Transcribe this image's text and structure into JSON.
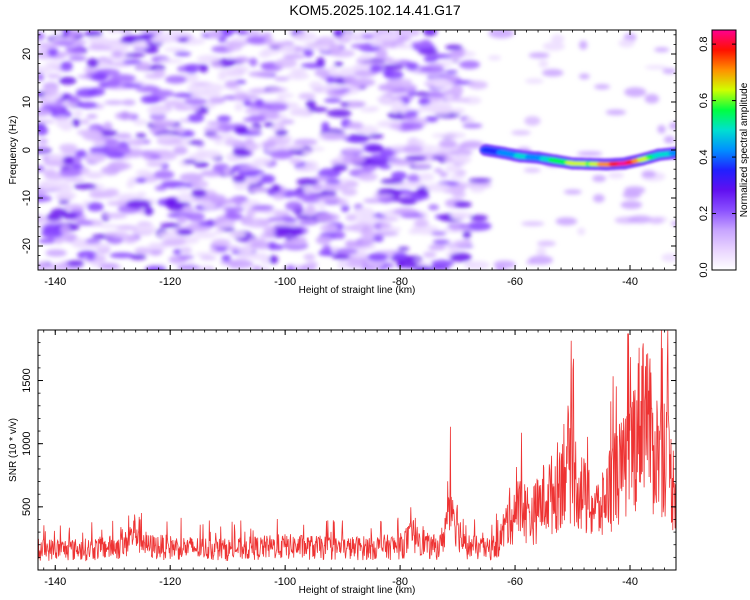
{
  "title": "KOM5.2025.102.14.41.G17",
  "colors": {
    "snr_line": "#ee3333",
    "colormap": [
      "#ffffff",
      "#e9d4ff",
      "#c7a4ff",
      "#8a4fff",
      "#6010f0",
      "#2020ff",
      "#0090ff",
      "#00e0d0",
      "#00ff40",
      "#d0ff00",
      "#ff9000",
      "#ff1000",
      "#ff0090"
    ]
  },
  "chart_data": [
    {
      "type": "heatmap",
      "name": "spectrogram",
      "xlabel": "Height of straight line (km)",
      "ylabel": "Frequency (Hz)",
      "xlim": [
        -143,
        -32
      ],
      "ylim": [
        -25,
        25
      ],
      "xticks": [
        -140,
        -120,
        -100,
        -80,
        -60,
        -40
      ],
      "yticks": [
        -20,
        -10,
        0,
        10,
        20
      ],
      "colorbar": {
        "label": "Normalized spectral amplitude",
        "range": [
          0.0,
          0.85
        ],
        "ticks": [
          "0.0",
          "0.2",
          "0.4",
          "0.6",
          "0.8"
        ]
      },
      "signal_ridge": [
        {
          "x": -65,
          "y": 0.0,
          "amp": 0.32
        },
        {
          "x": -62,
          "y": -0.6,
          "amp": 0.42
        },
        {
          "x": -59,
          "y": -1.3,
          "amp": 0.48
        },
        {
          "x": -56,
          "y": -1.6,
          "amp": 0.44
        },
        {
          "x": -53,
          "y": -2.2,
          "amp": 0.55
        },
        {
          "x": -50,
          "y": -2.8,
          "amp": 0.62
        },
        {
          "x": -47,
          "y": -2.9,
          "amp": 0.6
        },
        {
          "x": -44,
          "y": -3.0,
          "amp": 0.72
        },
        {
          "x": -41,
          "y": -2.8,
          "amp": 0.85
        },
        {
          "x": -38,
          "y": -2.0,
          "amp": 0.66
        },
        {
          "x": -35,
          "y": -1.0,
          "amp": 0.5
        },
        {
          "x": -32,
          "y": -0.6,
          "amp": 0.45
        }
      ]
    },
    {
      "type": "line",
      "name": "snr",
      "xlabel": "Height of straight line (km)",
      "ylabel": "SNR (10 * v/v)",
      "xlim": [
        -143,
        -32
      ],
      "ylim": [
        0,
        1900
      ],
      "xticks": [
        -140,
        -120,
        -100,
        -80,
        -60,
        -40
      ],
      "yticks": [
        500,
        1000,
        1500
      ],
      "envelope": [
        {
          "x": -143,
          "y": 200
        },
        {
          "x": -135,
          "y": 200
        },
        {
          "x": -128,
          "y": 230
        },
        {
          "x": -126,
          "y": 390
        },
        {
          "x": -124,
          "y": 230
        },
        {
          "x": -110,
          "y": 200
        },
        {
          "x": -100,
          "y": 230
        },
        {
          "x": -90,
          "y": 210
        },
        {
          "x": -80,
          "y": 230
        },
        {
          "x": -77,
          "y": 360
        },
        {
          "x": -75,
          "y": 220
        },
        {
          "x": -73,
          "y": 230
        },
        {
          "x": -71,
          "y": 650
        },
        {
          "x": -69,
          "y": 240
        },
        {
          "x": -65,
          "y": 200
        },
        {
          "x": -63,
          "y": 240
        },
        {
          "x": -61,
          "y": 520
        },
        {
          "x": -59,
          "y": 610
        },
        {
          "x": -57,
          "y": 520
        },
        {
          "x": -55,
          "y": 690
        },
        {
          "x": -53,
          "y": 760
        },
        {
          "x": -51,
          "y": 1080
        },
        {
          "x": -49,
          "y": 820
        },
        {
          "x": -47,
          "y": 620
        },
        {
          "x": -45,
          "y": 580
        },
        {
          "x": -43,
          "y": 900
        },
        {
          "x": -41,
          "y": 980
        },
        {
          "x": -39,
          "y": 1300
        },
        {
          "x": -37.5,
          "y": 1700
        },
        {
          "x": -36,
          "y": 1150
        },
        {
          "x": -34,
          "y": 1180
        },
        {
          "x": -32.5,
          "y": 820
        }
      ]
    }
  ]
}
